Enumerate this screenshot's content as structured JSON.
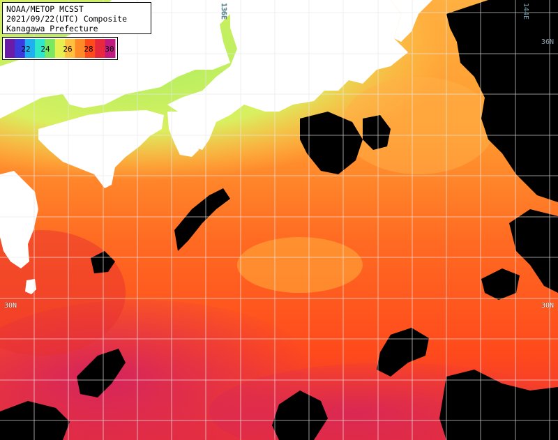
{
  "title": {
    "line1": "NOAA/METOP MCSST",
    "line2": "2021/09/22(UTC) Composite",
    "line3": "Kanagawa Prefecture"
  },
  "legend": {
    "ticks": [
      "22",
      "24",
      "26",
      "28",
      "30"
    ],
    "colors": [
      "#6a1ca8",
      "#3a3adf",
      "#1fb0f0",
      "#2ee8c8",
      "#7ae860",
      "#e6f050",
      "#ffc040",
      "#ff8a28",
      "#ff4a1c",
      "#e8283c",
      "#c01a80"
    ]
  },
  "grid_labels": {
    "lon136": "136E",
    "lon144": "144E",
    "lat30_left": "30N",
    "lat30_right": "30N",
    "lat36_right": "36N"
  },
  "colors": {
    "land": "#ffffff",
    "cloud": "#000000",
    "sea_warm": "#ff5a1e",
    "sea_hot": "#c81a60",
    "sea_mid": "#ffa030",
    "sea_cool": "#a0e860",
    "grid": "#e8e8e8"
  }
}
